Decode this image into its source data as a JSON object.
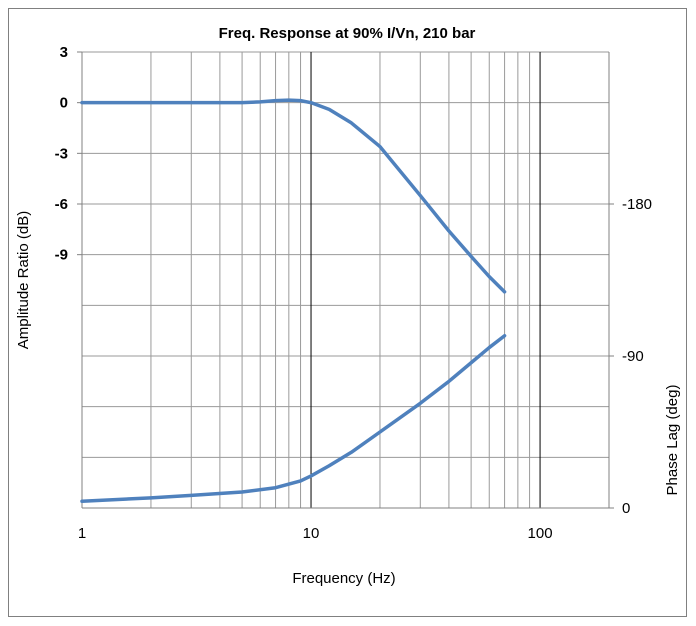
{
  "chart_data": {
    "type": "line",
    "title": "Freq. Response at 90% I/Vn, 210 bar",
    "xlabel": "Frequency (Hz)",
    "ylabel_left": "Amplitude Ratio (dB)",
    "ylabel_right": "Phase Lag (deg)",
    "x_scale": "log",
    "xlim": [
      1,
      200
    ],
    "x_ticks": [
      {
        "value": 1,
        "label": "1"
      },
      {
        "value": 10,
        "label": "10"
      },
      {
        "value": 100,
        "label": "100"
      }
    ],
    "ylim_left": [
      -24,
      3
    ],
    "y_ticks_left": [
      {
        "value": 3,
        "label": "3"
      },
      {
        "value": 0,
        "label": "0"
      },
      {
        "value": -3,
        "label": "-3"
      },
      {
        "value": -6,
        "label": "-6"
      },
      {
        "value": -9,
        "label": "-9"
      }
    ],
    "ylim_right": [
      0,
      270
    ],
    "y_ticks_right": [
      {
        "value": 180,
        "label": "-180"
      },
      {
        "value": 90,
        "label": "-90"
      },
      {
        "value": 0,
        "label": "0"
      }
    ],
    "grid": true,
    "legend": "none",
    "line_color": "#4f81bd",
    "series": [
      {
        "axis": "left",
        "x": [
          1,
          2,
          3,
          5,
          6,
          7,
          8,
          9,
          10,
          12,
          15,
          20,
          30,
          40,
          50,
          60,
          70
        ],
        "y": [
          0,
          0,
          0,
          0,
          0.05,
          0.12,
          0.15,
          0.12,
          0.0,
          -0.4,
          -1.2,
          -2.6,
          -5.5,
          -7.6,
          -9.1,
          -10.3,
          -11.2
        ]
      },
      {
        "axis": "right",
        "x": [
          1,
          2,
          3,
          5,
          7,
          9,
          10,
          12,
          15,
          20,
          30,
          40,
          50,
          60,
          70
        ],
        "y": [
          4,
          6,
          7.5,
          9.5,
          12,
          16,
          19,
          25,
          33,
          45,
          62,
          75,
          86,
          95,
          102
        ]
      }
    ]
  }
}
